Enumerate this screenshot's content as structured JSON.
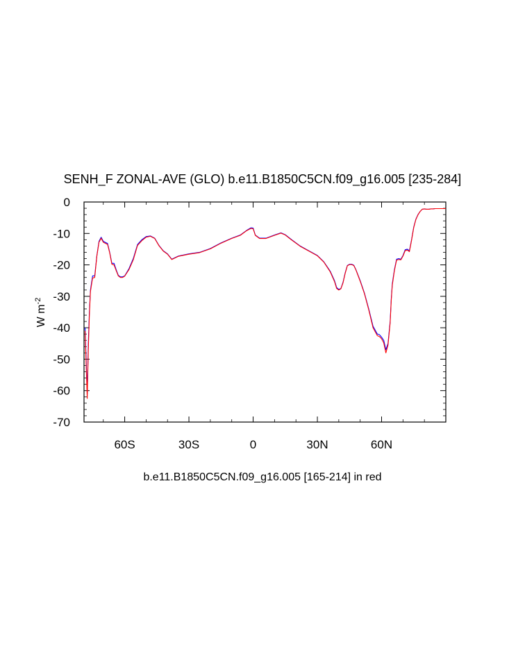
{
  "chart_data": {
    "type": "line",
    "title": "SENH_F ZONAL-AVE (GLO) b.e11.B1850C5CN.f09_g16.005 [235-284]",
    "xlabel": "b.e11.B1850C5CN.f09_g16.005 [165-214] in red",
    "ylabel": "W m",
    "ylabel_superscript": "-2",
    "xlim": [
      -79,
      90
    ],
    "ylim": [
      -70,
      0
    ],
    "y_ticks": [
      0,
      -10,
      -20,
      -30,
      -40,
      -50,
      -60,
      -70
    ],
    "y_tick_labels": [
      "0",
      "-10",
      "-20",
      "-30",
      "-40",
      "-50",
      "-60",
      "-70"
    ],
    "x_ticks": [
      -60,
      -30,
      0,
      30,
      60
    ],
    "x_tick_labels": [
      "60S",
      "30S",
      "0",
      "30N",
      "60N"
    ],
    "grid": false,
    "series": [
      {
        "color": "#0000ff",
        "x": [
          -78.5,
          -78,
          -77.5,
          -77,
          -76.5,
          -76,
          -75,
          -74,
          -73,
          -72,
          -71,
          -70,
          -68,
          -67,
          -66,
          -65,
          -64,
          -63,
          -62,
          -61,
          -60,
          -58,
          -56,
          -54,
          -52,
          -50,
          -48,
          -46,
          -44,
          -42,
          -40,
          -38,
          -35,
          -30,
          -25,
          -20,
          -15,
          -10,
          -6,
          -3,
          -1,
          0,
          1,
          3,
          6,
          10,
          13,
          15,
          18,
          22,
          26,
          30,
          33,
          36,
          38,
          39,
          40,
          41,
          42,
          43,
          44,
          45,
          46,
          47,
          48,
          50,
          52,
          54,
          56,
          58,
          59,
          60,
          61,
          62,
          63,
          64,
          64.5,
          65,
          66,
          67,
          68,
          69,
          70,
          71,
          72,
          73,
          74,
          75,
          76,
          77,
          78,
          79,
          80,
          81,
          82,
          83,
          84,
          85,
          86,
          87,
          88,
          89,
          90
        ],
        "values": [
          -40,
          -50,
          -61,
          -45,
          -35,
          -28,
          -23.5,
          -23.5,
          -17,
          -12.5,
          -11.2,
          -12.5,
          -13.2,
          -16,
          -19.5,
          -19.5,
          -21.5,
          -23.3,
          -23.8,
          -23.8,
          -23.5,
          -21.2,
          -18,
          -13.5,
          -12,
          -11,
          -10.8,
          -11.5,
          -13.8,
          -15.5,
          -16.5,
          -18.2,
          -17.2,
          -16.5,
          -16,
          -14.8,
          -13,
          -11.5,
          -10.5,
          -9,
          -8.2,
          -8.3,
          -10.5,
          -11.5,
          -11.5,
          -10.5,
          -9.8,
          -10.4,
          -12,
          -14,
          -15.5,
          -17,
          -19,
          -22,
          -25,
          -27.2,
          -27.8,
          -27.5,
          -25.5,
          -22.5,
          -20.2,
          -19.8,
          -19.8,
          -20.1,
          -21.5,
          -25,
          -29,
          -34,
          -39.5,
          -42,
          -42.2,
          -43,
          -44,
          -47,
          -45,
          -38,
          -31,
          -26,
          -21.5,
          -18.2,
          -18,
          -18.2,
          -17,
          -15.2,
          -15,
          -15.5,
          -12,
          -8,
          -5.5,
          -4,
          -3,
          -2.3,
          -2.2,
          -2.3,
          -2.3,
          -2.2,
          -2.2,
          -2.1,
          -2.1,
          -2.1,
          -2.1,
          -2.1,
          -2.1
        ]
      },
      {
        "color": "#ff0000",
        "x": [
          -78.5,
          -78,
          -77.5,
          -77,
          -76.5,
          -76,
          -75,
          -74,
          -73,
          -72,
          -71,
          -70,
          -68,
          -67,
          -66,
          -65,
          -64,
          -63,
          -62,
          -61,
          -60,
          -58,
          -56,
          -54,
          -52,
          -50,
          -48,
          -46,
          -44,
          -42,
          -40,
          -38,
          -35,
          -30,
          -25,
          -20,
          -15,
          -10,
          -6,
          -3,
          -1,
          0,
          1,
          3,
          6,
          10,
          13,
          15,
          18,
          22,
          26,
          30,
          33,
          36,
          38,
          39,
          40,
          41,
          42,
          43,
          44,
          45,
          46,
          47,
          48,
          50,
          52,
          54,
          56,
          58,
          59,
          60,
          61,
          62,
          63,
          64,
          64.5,
          65,
          66,
          67,
          68,
          69,
          70,
          71,
          72,
          73,
          74,
          75,
          76,
          77,
          78,
          79,
          80,
          81,
          82,
          83,
          84,
          85,
          86,
          87,
          88,
          89,
          90
        ],
        "values": [
          -41,
          -52,
          -62.5,
          -47,
          -36,
          -28.5,
          -24.2,
          -24,
          -17.2,
          -12.8,
          -11.5,
          -12.8,
          -13.5,
          -16.2,
          -19.8,
          -20,
          -21.8,
          -23.5,
          -24,
          -24,
          -23.6,
          -21.5,
          -18.4,
          -13.8,
          -12.3,
          -11.2,
          -10.9,
          -11.6,
          -13.9,
          -15.6,
          -16.6,
          -18.3,
          -17.3,
          -16.6,
          -16.1,
          -14.9,
          -13.1,
          -11.6,
          -10.6,
          -9.1,
          -8.4,
          -8.5,
          -10.6,
          -11.6,
          -11.6,
          -10.6,
          -9.9,
          -10.5,
          -12.1,
          -14.1,
          -15.6,
          -17.1,
          -19.1,
          -22.2,
          -25.3,
          -27.5,
          -28,
          -27.6,
          -25.7,
          -22.7,
          -20.3,
          -19.9,
          -19.9,
          -20.2,
          -21.6,
          -25.2,
          -29.2,
          -34.3,
          -40,
          -42.5,
          -42.8,
          -43.5,
          -44.8,
          -48,
          -45.5,
          -38.5,
          -31.5,
          -26.5,
          -21.8,
          -18.5,
          -18.3,
          -18.4,
          -17.2,
          -15.5,
          -15.3,
          -15.8,
          -12.2,
          -8.2,
          -5.6,
          -4.1,
          -3,
          -2.3,
          -2.2,
          -2.3,
          -2.3,
          -2.2,
          -2.2,
          -2.1,
          -2.1,
          -2.1,
          -2.1,
          -2.1,
          -2.1
        ]
      }
    ]
  }
}
